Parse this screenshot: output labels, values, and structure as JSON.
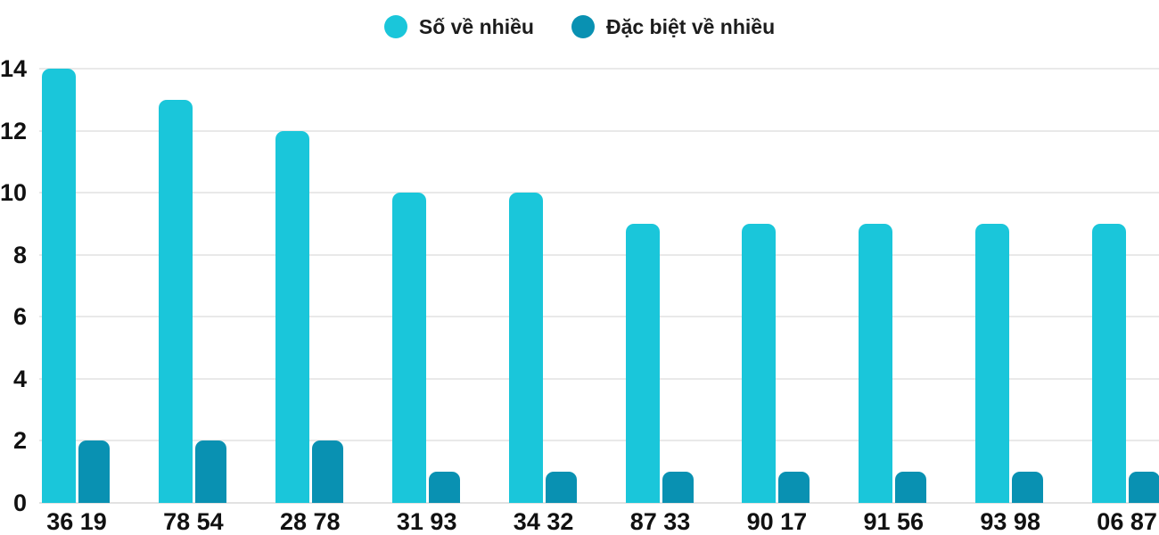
{
  "chart_data": {
    "type": "bar",
    "title": "",
    "xlabel": "",
    "ylabel": "",
    "categories": [
      "36 19",
      "78 54",
      "28 78",
      "31 93",
      "34 32",
      "87 33",
      "90 17",
      "91 56",
      "93 98",
      "06 87"
    ],
    "series": [
      {
        "name": "Số về nhiều",
        "color": "#1ac6da",
        "values": [
          14,
          13,
          12,
          10,
          10,
          9,
          9,
          9,
          9,
          9
        ]
      },
      {
        "name": "Đặc biệt về nhiều",
        "color": "#0991b2",
        "values": [
          2,
          2,
          2,
          1,
          1,
          1,
          1,
          1,
          1,
          1
        ]
      }
    ],
    "ylim": [
      0,
      14
    ],
    "yticks": [
      0,
      2,
      4,
      6,
      8,
      10,
      12,
      14
    ],
    "grid": true,
    "legend_position": "top"
  },
  "colors": {
    "background": "#ffffff",
    "gridline": "#e9e9e9",
    "axis_text": "#111111",
    "series_light": "#1ac6da",
    "series_dark": "#0991b2"
  }
}
